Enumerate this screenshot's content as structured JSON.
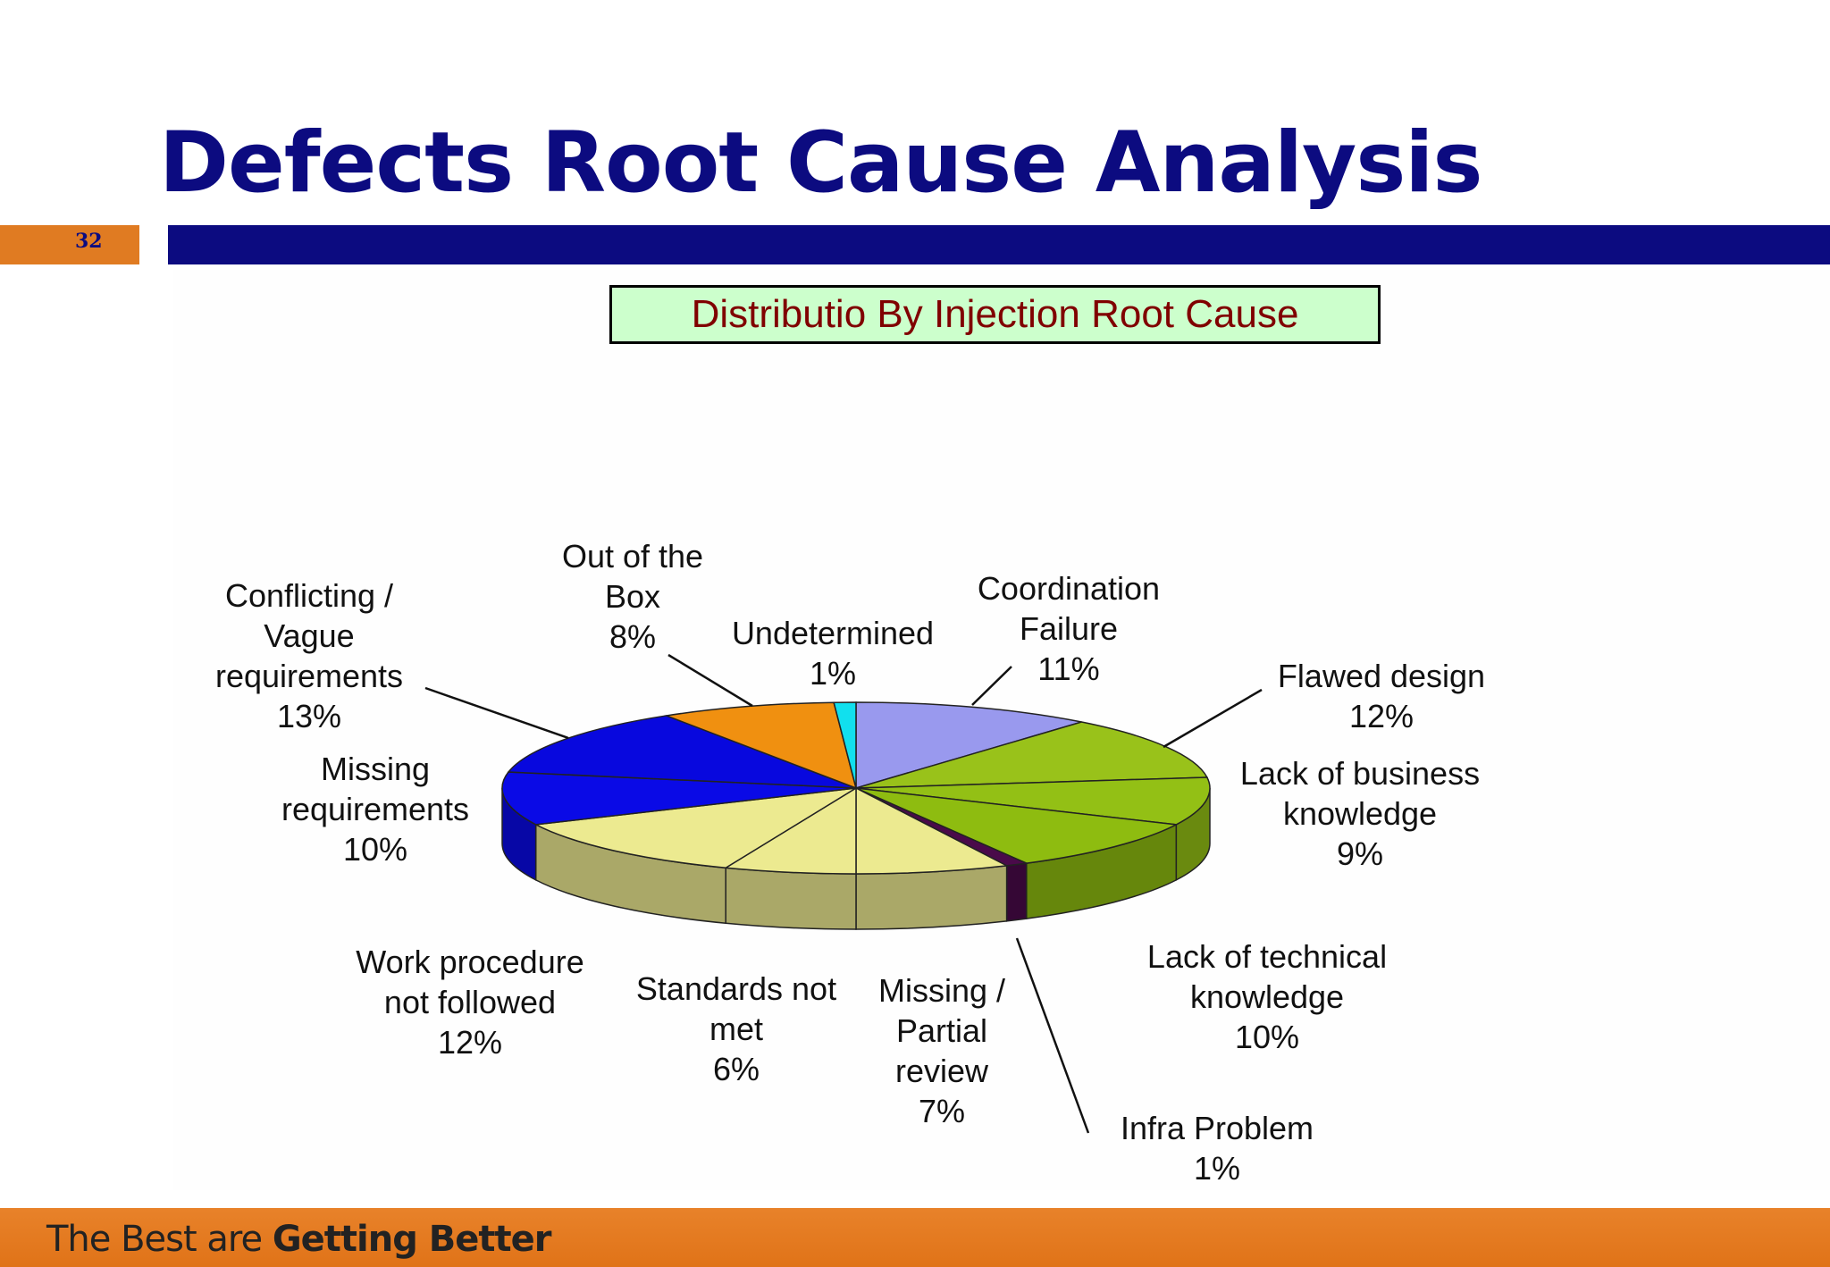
{
  "slide": {
    "title": "Defects Root Cause Analysis",
    "page_number": "32",
    "footer_light": "The Best are ",
    "footer_bold": "Getting Better"
  },
  "colors": {
    "title_blue": "#0c0b80",
    "accent_orange": "#e07b22",
    "chart_title_bg": "#ccffcc",
    "chart_title_text": "#800000"
  },
  "chart_data": {
    "type": "pie",
    "title": "Distributio By Injection Root Cause",
    "slices": [
      {
        "label_lines": [
          "Coordination",
          "Failure"
        ],
        "percent_text": "11%",
        "value": 11,
        "color": "#9999ee"
      },
      {
        "label_lines": [
          "Flawed design"
        ],
        "percent_text": "12%",
        "value": 12,
        "color": "#99c21a"
      },
      {
        "label_lines": [
          "Lack of business",
          "knowledge"
        ],
        "percent_text": "9%",
        "value": 9,
        "color": "#93c015"
      },
      {
        "label_lines": [
          "Lack of technical",
          "knowledge"
        ],
        "percent_text": "10%",
        "value": 10,
        "color": "#8ebc10"
      },
      {
        "label_lines": [
          "Infra Problem"
        ],
        "percent_text": "1%",
        "value": 1,
        "color": "#4a0a4a"
      },
      {
        "label_lines": [
          "Missing /",
          "Partial",
          "review"
        ],
        "percent_text": "7%",
        "value": 7,
        "color": "#ecea90"
      },
      {
        "label_lines": [
          "Standards not",
          "met"
        ],
        "percent_text": "6%",
        "value": 6,
        "color": "#ecea90"
      },
      {
        "label_lines": [
          "Work procedure",
          "not followed"
        ],
        "percent_text": "12%",
        "value": 12,
        "color": "#ecea90"
      },
      {
        "label_lines": [
          "Missing",
          "requirements"
        ],
        "percent_text": "10%",
        "value": 10,
        "color": "#0a0ae6"
      },
      {
        "label_lines": [
          "Conflicting /",
          "Vague",
          "requirements"
        ],
        "percent_text": "13%",
        "value": 13,
        "color": "#0808de"
      },
      {
        "label_lines": [
          "Out of the",
          "Box"
        ],
        "percent_text": "8%",
        "value": 8,
        "color": "#f09010"
      },
      {
        "label_lines": [
          "Undetermined"
        ],
        "percent_text": "1%",
        "value": 1,
        "color": "#11e0ee"
      }
    ]
  }
}
